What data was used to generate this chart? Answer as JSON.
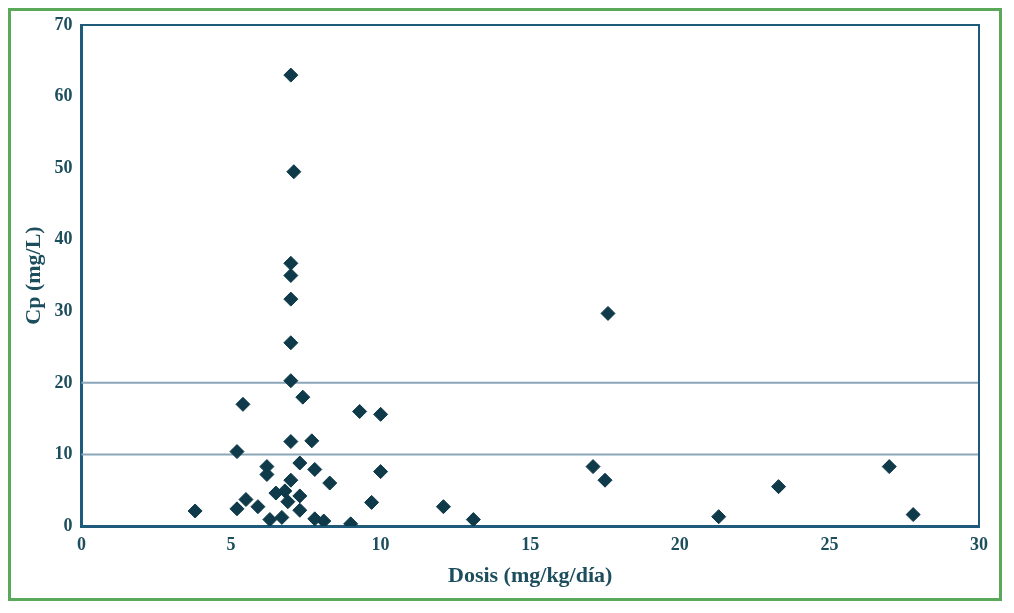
{
  "chart_data": {
    "type": "scatter",
    "xlabel": "Dosis (mg/kg/día)",
    "ylabel": "Cp (mg/L)",
    "xlim": [
      0,
      30
    ],
    "xticks": [
      0,
      5,
      10,
      15,
      20,
      25,
      30
    ],
    "ylim": [
      0,
      70
    ],
    "yticks": [
      0,
      10,
      20,
      30,
      40,
      50,
      60,
      70
    ],
    "grid": false,
    "marker": "diamond",
    "ref_lines": [
      {
        "axis": "y",
        "value": 10,
        "color": "#8aa6b8"
      },
      {
        "axis": "y",
        "value": 20,
        "color": "#8aa6b8"
      }
    ],
    "series": [
      {
        "color": "#0e3a4a",
        "x": [
          7.0,
          7.1,
          7.0,
          7.0,
          7.0,
          7.0,
          7.0,
          7.4,
          5.4,
          9.3,
          10.0,
          5.2,
          7.0,
          7.7,
          6.2,
          6.2,
          7.3,
          7.8,
          8.3,
          10.0,
          9.7,
          12.1,
          13.1,
          3.8,
          5.2,
          5.5,
          5.9,
          6.5,
          6.8,
          7.0,
          7.3,
          7.3,
          6.7,
          6.3,
          7.8,
          8.1,
          9.0,
          6.9,
          17.1,
          17.5,
          17.6,
          23.3,
          21.3,
          27.0,
          27.8
        ],
        "values": [
          63,
          49.5,
          36.7,
          35,
          31.7,
          25.6,
          20.3,
          18,
          17,
          16,
          15.6,
          10.4,
          11.8,
          11.9,
          8.3,
          7.2,
          8.8,
          7.9,
          6,
          7.6,
          3.3,
          2.7,
          0.9,
          2.1,
          2.4,
          3.7,
          2.7,
          4.6,
          4.9,
          6.4,
          4.2,
          2.2,
          1.2,
          0.9,
          1,
          0.7,
          0.3,
          3.4,
          8.3,
          6.4,
          29.7,
          5.5,
          1.3,
          8.3,
          1.6
        ]
      }
    ]
  }
}
